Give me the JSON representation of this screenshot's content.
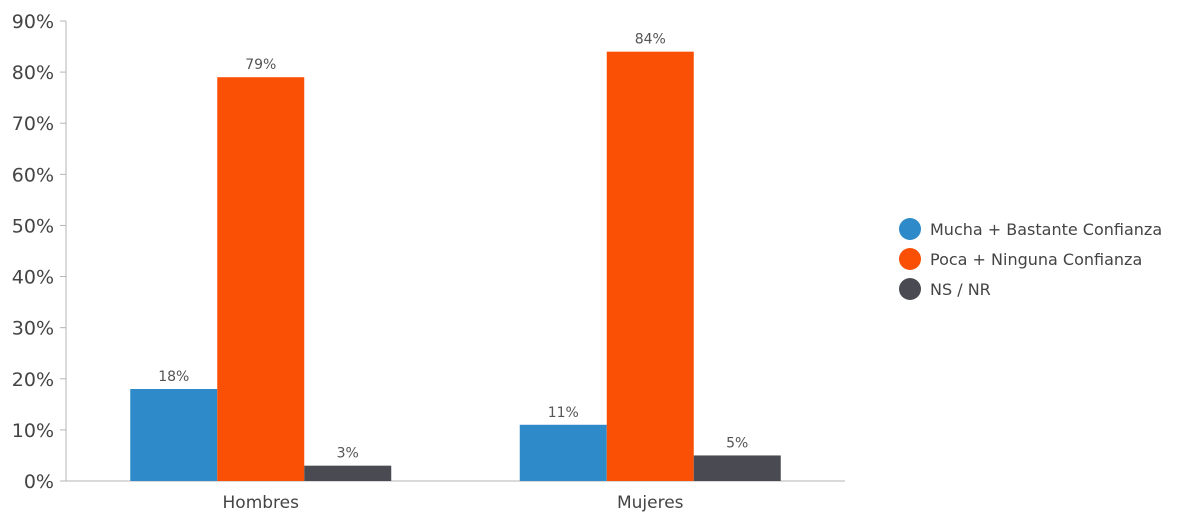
{
  "chart_data": {
    "type": "bar",
    "categories": [
      "Hombres",
      "Mujeres"
    ],
    "series": [
      {
        "name": "Mucha + Bastante Confianza",
        "values": [
          18,
          11
        ],
        "color": "#2e8ac8",
        "labels": [
          "18%",
          "11%"
        ]
      },
      {
        "name": "Poca + Ninguna Confianza",
        "values": [
          79,
          84
        ],
        "color": "#fa5005",
        "labels": [
          "79%",
          "84%"
        ]
      },
      {
        "name": "NS / NR",
        "values": [
          3,
          5
        ],
        "color": "#4a4a52",
        "labels": [
          "3%",
          "5%"
        ]
      }
    ],
    "ylim": [
      0,
      90
    ],
    "yticks": [
      0,
      10,
      20,
      30,
      40,
      50,
      60,
      70,
      80,
      90
    ],
    "ytick_labels": [
      "0%",
      "10%",
      "20%",
      "30%",
      "40%",
      "50%",
      "60%",
      "70%",
      "80%",
      "90%"
    ],
    "grid": false,
    "legend_position": "right"
  }
}
